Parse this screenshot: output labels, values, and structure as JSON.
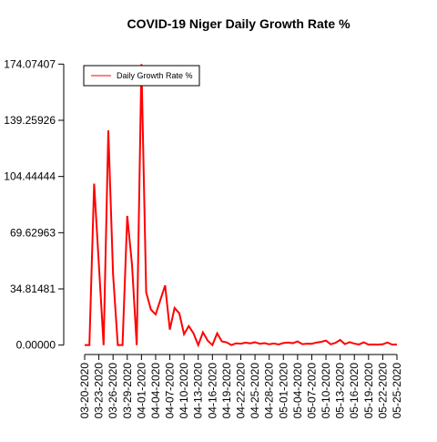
{
  "chart_data": {
    "type": "line",
    "title": "COVID-19 Niger Daily Growth Rate %",
    "categories": [
      "03-20-2020",
      null,
      null,
      "03-23-2020",
      null,
      null,
      "03-26-2020",
      null,
      null,
      "03-29-2020",
      null,
      null,
      "04-01-2020",
      null,
      null,
      "04-04-2020",
      null,
      null,
      "04-07-2020",
      null,
      null,
      "04-10-2020",
      null,
      null,
      "04-13-2020",
      null,
      null,
      "04-16-2020",
      null,
      null,
      "04-19-2020",
      null,
      null,
      "04-22-2020",
      null,
      null,
      "04-25-2020",
      null,
      null,
      "04-28-2020",
      null,
      null,
      "05-01-2020",
      null,
      null,
      "05-04-2020",
      null,
      null,
      "05-07-2020",
      null,
      null,
      "05-10-2020",
      null,
      null,
      "05-13-2020",
      null,
      null,
      "05-16-2020",
      null,
      null,
      "05-19-2020",
      null,
      null,
      "05-22-2020",
      null,
      null,
      "05-25-2020"
    ],
    "series": [
      {
        "name": "Daily Growth Rate %",
        "color": "#ff0000",
        "values": [
          0,
          0,
          100,
          50,
          0,
          133,
          44,
          0,
          0,
          80,
          50,
          0,
          174.07407,
          32.7,
          22,
          19,
          28,
          37,
          9.6,
          23,
          19.7,
          6.8,
          11.8,
          7.3,
          0,
          7.9,
          2.8,
          0,
          7.3,
          2.3,
          1.7,
          0,
          1.1,
          0.9,
          1.5,
          1.1,
          1.8,
          0.8,
          1.2,
          0.5,
          1.0,
          0.4,
          1.3,
          1.6,
          1.2,
          2.3,
          0.6,
          0.9,
          0.8,
          1.6,
          2.0,
          2.8,
          0.5,
          1.4,
          3.2,
          0.6,
          1.8,
          0.9,
          0.4,
          1.7,
          0.3,
          0.4,
          0.3,
          0.5,
          1.6,
          0.3,
          0.4
        ]
      }
    ],
    "ylim": [
      -6.96,
      181.04
    ],
    "yticks": [
      {
        "value": 0,
        "label": "0.00000"
      },
      34.81481,
      69.62963,
      104.44444,
      139.25926,
      174.07407
    ],
    "legend": "top-left"
  }
}
